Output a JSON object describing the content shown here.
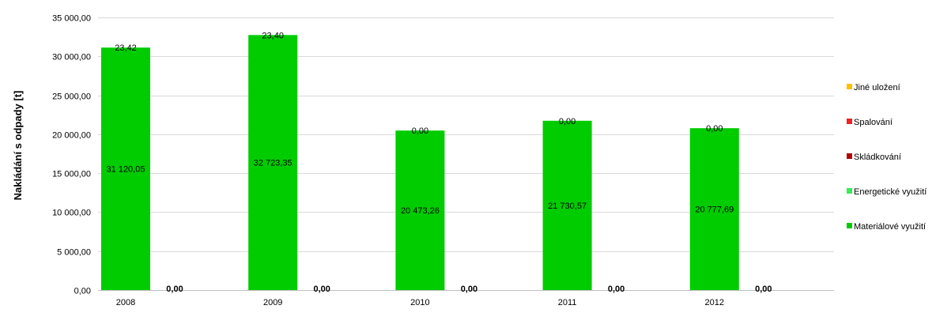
{
  "chart_data": {
    "type": "bar",
    "stacked": true,
    "title": "",
    "xlabel": "",
    "ylabel": "Nakládání s odpady [t]",
    "ylim": [
      0,
      35000
    ],
    "yticks": [
      0,
      5000,
      10000,
      15000,
      20000,
      25000,
      30000,
      35000
    ],
    "ytick_labels": [
      "0,00",
      "5 000,00",
      "10 000,00",
      "15 000,00",
      "20 000,00",
      "25 000,00",
      "30 000,00",
      "35 000,00"
    ],
    "grid": true,
    "legend_position": "right",
    "categories": [
      "2008",
      "2009",
      "2010",
      "2011",
      "2012"
    ],
    "series": [
      {
        "name": "Materiálové využití",
        "color": "#00CC00",
        "values": [
          31120.05,
          32723.35,
          20473.26,
          21730.57,
          20777.69
        ],
        "labels": [
          "31 120,05",
          "32 723,35",
          "20 473,26",
          "21 730,57",
          "20 777,69"
        ]
      },
      {
        "name": "Energetické využití",
        "color": "#33EE55",
        "values": [
          23.42,
          23.4,
          0.0,
          0.0,
          0.0
        ],
        "labels": [
          "23,42",
          "23,40",
          "0,00",
          "0,00",
          "0,00"
        ]
      },
      {
        "name": "Skládkování",
        "color": "#B00000",
        "values": [
          0,
          0,
          0,
          0,
          0
        ]
      },
      {
        "name": "Spalování",
        "color": "#EE2222",
        "values": [
          0,
          0,
          0,
          0,
          0
        ]
      },
      {
        "name": "Jiné uložení",
        "color": "#FFC000",
        "values": [
          0,
          0,
          0,
          0,
          0
        ]
      }
    ],
    "secondary_bar_labels": [
      "0,00",
      "0,00",
      "0,00",
      "0,00",
      "0,00"
    ]
  },
  "legend_items": [
    {
      "label": "Jiné uložení",
      "color": "#FFC000"
    },
    {
      "label": "Spalování",
      "color": "#EE2222"
    },
    {
      "label": "Skládkování",
      "color": "#B00000"
    },
    {
      "label": "Energetické využití",
      "color": "#33EE55"
    },
    {
      "label": "Materiálové využití",
      "color": "#00CC00"
    }
  ]
}
